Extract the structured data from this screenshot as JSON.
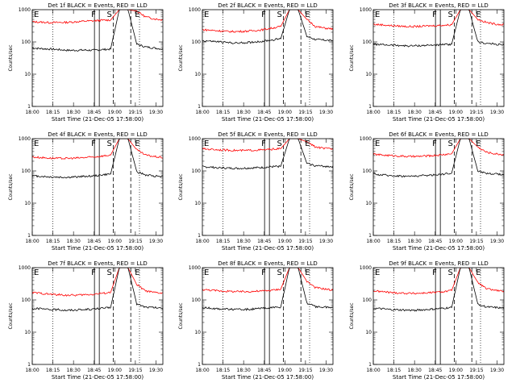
{
  "chart_data": {
    "type": "line",
    "y_scale": "log",
    "ylim": [
      1,
      1000
    ],
    "yticks": [
      "1",
      "10",
      "100",
      "1000"
    ],
    "ylabel": "Counts/sec",
    "xlabel": "Start Time (21-Dec-05 17:58:00)",
    "xlim": [
      "18:00",
      "19:35"
    ],
    "xticks": [
      "18:00",
      "18:15",
      "18:30",
      "18:45",
      "19:00",
      "19:15",
      "19:30"
    ],
    "series_legend": "BLACK = Events, RED = LLD",
    "colors": {
      "events": "#000000",
      "lld": "#ff0000"
    },
    "flag_labels": [
      "E",
      "F",
      "S",
      "E"
    ],
    "panels": [
      {
        "title": "Det 1f BLACK = Events, RED = LLD",
        "flags": {
          "E1": "18:00",
          "F": "18:47",
          "S": "18:56",
          "E2": "19:14"
        },
        "lld": [
          420,
          410,
          400,
          400,
          405,
          420,
          440,
          450,
          470,
          480,
          1000,
          1000,
          900,
          600,
          520,
          480
        ],
        "events": [
          65,
          62,
          60,
          58,
          55,
          55,
          56,
          55,
          58,
          60,
          1000,
          1000,
          85,
          70,
          65,
          60
        ]
      },
      {
        "title": "Det 2f BLACK = Events, RED = LLD",
        "flags": {
          "E1": "18:00",
          "F": "18:47",
          "S": "18:56",
          "E2": "19:14"
        },
        "lld": [
          240,
          230,
          220,
          210,
          210,
          215,
          225,
          240,
          270,
          300,
          1000,
          1000,
          500,
          300,
          270,
          250
        ],
        "events": [
          110,
          105,
          100,
          95,
          92,
          95,
          100,
          105,
          115,
          125,
          1000,
          1000,
          150,
          120,
          115,
          110
        ]
      },
      {
        "title": "Det 3f BLACK = Events, RED = LLD",
        "flags": {
          "E1": "18:00",
          "F": "18:47",
          "S": "18:56",
          "E2": "19:14"
        },
        "lld": [
          350,
          340,
          320,
          310,
          300,
          300,
          310,
          320,
          330,
          340,
          1000,
          1000,
          500,
          400,
          360,
          340
        ],
        "events": [
          85,
          82,
          80,
          78,
          75,
          76,
          78,
          80,
          82,
          85,
          1000,
          1000,
          100,
          90,
          85,
          80
        ]
      },
      {
        "title": "Det 4f BLACK = Events, RED = LLD",
        "flags": {
          "E1": "18:00",
          "F": "18:47",
          "S": "18:56",
          "E2": "19:14"
        },
        "lld": [
          270,
          260,
          250,
          245,
          245,
          250,
          260,
          270,
          290,
          310,
          1000,
          1000,
          450,
          310,
          280,
          260
        ],
        "events": [
          70,
          68,
          65,
          64,
          63,
          65,
          68,
          70,
          75,
          80,
          1000,
          1000,
          95,
          75,
          70,
          68
        ]
      },
      {
        "title": "Det 5f BLACK = Events, RED = LLD",
        "flags": {
          "E1": "18:00",
          "F": "18:47",
          "S": "18:56",
          "E2": "19:14"
        },
        "lld": [
          480,
          470,
          450,
          440,
          430,
          430,
          440,
          450,
          470,
          490,
          1000,
          1000,
          800,
          550,
          500,
          480
        ],
        "events": [
          135,
          130,
          125,
          122,
          120,
          122,
          125,
          128,
          135,
          140,
          1000,
          1000,
          170,
          145,
          140,
          135
        ]
      },
      {
        "title": "Det 6f BLACK = Events, RED = LLD",
        "flags": {
          "E1": "18:00",
          "F": "18:47",
          "S": "18:56",
          "E2": "19:14"
        },
        "lld": [
          330,
          310,
          300,
          290,
          280,
          280,
          290,
          300,
          320,
          340,
          1000,
          1000,
          550,
          380,
          340,
          320
        ],
        "events": [
          80,
          75,
          72,
          70,
          68,
          70,
          72,
          75,
          80,
          85,
          1000,
          1000,
          100,
          85,
          80,
          78
        ]
      },
      {
        "title": "Det 7f BLACK = Events, RED = LLD",
        "flags": {
          "E1": "18:00",
          "F": "18:47",
          "S": "18:56",
          "E2": "19:14"
        },
        "lld": [
          170,
          160,
          150,
          145,
          140,
          140,
          145,
          150,
          160,
          170,
          1000,
          1000,
          300,
          190,
          170,
          160
        ],
        "events": [
          55,
          53,
          50,
          50,
          48,
          49,
          50,
          52,
          55,
          58,
          1000,
          1000,
          75,
          60,
          58,
          55
        ]
      },
      {
        "title": "Det 8f BLACK = Events, RED = LLD",
        "flags": {
          "E1": "18:00",
          "F": "18:47",
          "S": "18:56",
          "E2": "19:14"
        },
        "lld": [
          210,
          200,
          190,
          185,
          180,
          180,
          185,
          190,
          200,
          215,
          1000,
          1000,
          380,
          240,
          220,
          200
        ],
        "events": [
          58,
          55,
          53,
          52,
          50,
          51,
          52,
          55,
          58,
          60,
          1000,
          1000,
          80,
          62,
          60,
          58
        ]
      },
      {
        "title": "Det 9f BLACK = Events, RED = LLD",
        "flags": {
          "E1": "18:00",
          "F": "18:47",
          "S": "18:56",
          "E2": "19:14"
        },
        "lld": [
          190,
          180,
          170,
          165,
          160,
          160,
          165,
          170,
          180,
          195,
          1000,
          1000,
          350,
          220,
          200,
          185
        ],
        "events": [
          55,
          53,
          50,
          49,
          48,
          48,
          50,
          52,
          55,
          58,
          1000,
          1000,
          75,
          60,
          58,
          55
        ]
      }
    ]
  }
}
